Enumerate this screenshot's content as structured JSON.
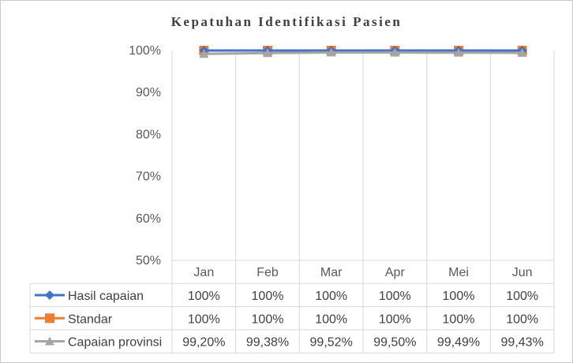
{
  "chart_data": {
    "type": "line",
    "title": "Kepatuhan Identifikasi Pasien",
    "categories": [
      "Jan",
      "Feb",
      "Mar",
      "Apr",
      "Mei",
      "Jun"
    ],
    "y_ticks": [
      "100%",
      "90%",
      "80%",
      "70%",
      "60%",
      "50%"
    ],
    "ylim": [
      50,
      100
    ],
    "grid": "vertical",
    "legend": "data-table",
    "series": [
      {
        "name": "Hasil capaian",
        "values": [
          100,
          100,
          100,
          100,
          100,
          100
        ],
        "labels": [
          "100%",
          "100%",
          "100%",
          "100%",
          "100%",
          "100%"
        ],
        "color": "#4472C4",
        "marker": "diamond"
      },
      {
        "name": "Standar",
        "values": [
          100,
          100,
          100,
          100,
          100,
          100
        ],
        "labels": [
          "100%",
          "100%",
          "100%",
          "100%",
          "100%",
          "100%"
        ],
        "color": "#ED7D31",
        "marker": "square"
      },
      {
        "name": "Capaian provinsi",
        "values": [
          99.2,
          99.38,
          99.52,
          99.5,
          99.49,
          99.43
        ],
        "labels": [
          "99,20%",
          "99,38%",
          "99,52%",
          "99,50%",
          "99,49%",
          "99,43%"
        ],
        "color": "#A5A5A5",
        "marker": "triangle"
      }
    ]
  }
}
